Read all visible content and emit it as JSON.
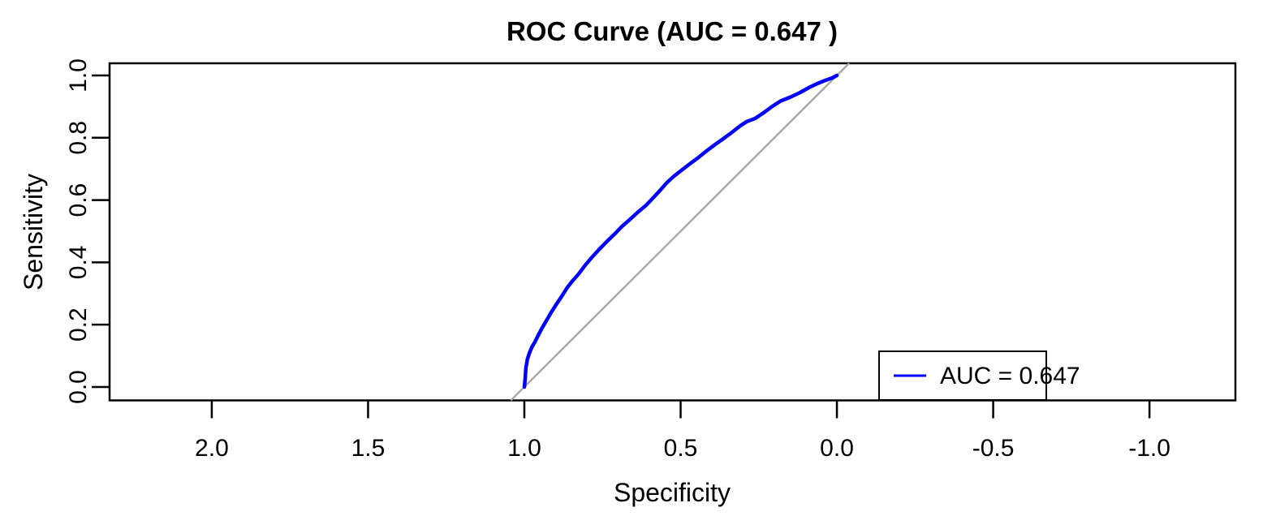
{
  "figure": {
    "background": "#ffffff",
    "text_color": "#000000"
  },
  "chart_data": {
    "type": "line",
    "title": "ROC Curve (AUC = 0.647 )",
    "xlabel": "Specificity",
    "ylabel": "Sensitivity",
    "auc": 0.647,
    "grid": false,
    "x_axis": {
      "reversed": true,
      "range": [
        2.327,
        -1.275
      ],
      "ticks": [
        2.0,
        1.5,
        1.0,
        0.5,
        0.0,
        -0.5,
        -1.0
      ],
      "labels": [
        "2.0",
        "1.5",
        "1.0",
        "0.5",
        "0.0",
        "-0.5",
        "-1.0"
      ]
    },
    "y_axis": {
      "range": [
        -0.043,
        1.039
      ],
      "ticks": [
        0.0,
        0.2,
        0.4,
        0.6,
        0.8,
        1.0
      ],
      "labels": [
        "0.0",
        "0.2",
        "0.4",
        "0.6",
        "0.8",
        "1.0"
      ]
    },
    "series": [
      {
        "name": "ROC curve",
        "color": "#0000ff",
        "points": [
          [
            1.0,
            0.0
          ],
          [
            0.997,
            0.03
          ],
          [
            0.995,
            0.062
          ],
          [
            0.99,
            0.09
          ],
          [
            0.984,
            0.108
          ],
          [
            0.976,
            0.128
          ],
          [
            0.966,
            0.145
          ],
          [
            0.956,
            0.165
          ],
          [
            0.944,
            0.188
          ],
          [
            0.93,
            0.212
          ],
          [
            0.915,
            0.238
          ],
          [
            0.898,
            0.265
          ],
          [
            0.88,
            0.292
          ],
          [
            0.862,
            0.32
          ],
          [
            0.845,
            0.342
          ],
          [
            0.827,
            0.362
          ],
          [
            0.806,
            0.39
          ],
          [
            0.785,
            0.415
          ],
          [
            0.762,
            0.44
          ],
          [
            0.738,
            0.465
          ],
          [
            0.712,
            0.49
          ],
          [
            0.688,
            0.515
          ],
          [
            0.663,
            0.537
          ],
          [
            0.638,
            0.56
          ],
          [
            0.612,
            0.582
          ],
          [
            0.588,
            0.607
          ],
          [
            0.565,
            0.632
          ],
          [
            0.545,
            0.655
          ],
          [
            0.522,
            0.676
          ],
          [
            0.498,
            0.695
          ],
          [
            0.472,
            0.715
          ],
          [
            0.445,
            0.735
          ],
          [
            0.418,
            0.757
          ],
          [
            0.39,
            0.778
          ],
          [
            0.362,
            0.798
          ],
          [
            0.335,
            0.818
          ],
          [
            0.31,
            0.838
          ],
          [
            0.288,
            0.852
          ],
          [
            0.262,
            0.862
          ],
          [
            0.235,
            0.88
          ],
          [
            0.208,
            0.9
          ],
          [
            0.18,
            0.918
          ],
          [
            0.15,
            0.93
          ],
          [
            0.12,
            0.944
          ],
          [
            0.088,
            0.962
          ],
          [
            0.06,
            0.975
          ],
          [
            0.035,
            0.985
          ],
          [
            0.015,
            0.992
          ],
          [
            0.0,
            1.0
          ]
        ]
      }
    ],
    "reference_line": {
      "name": "chance diagonal",
      "color": "#aaaaaa",
      "from": [
        1.043,
        -0.043
      ],
      "to": [
        -0.039,
        1.039
      ]
    },
    "legend": {
      "position": "bottom-right",
      "label": "AUC = 0.647",
      "line_color": "#0000ff"
    }
  }
}
